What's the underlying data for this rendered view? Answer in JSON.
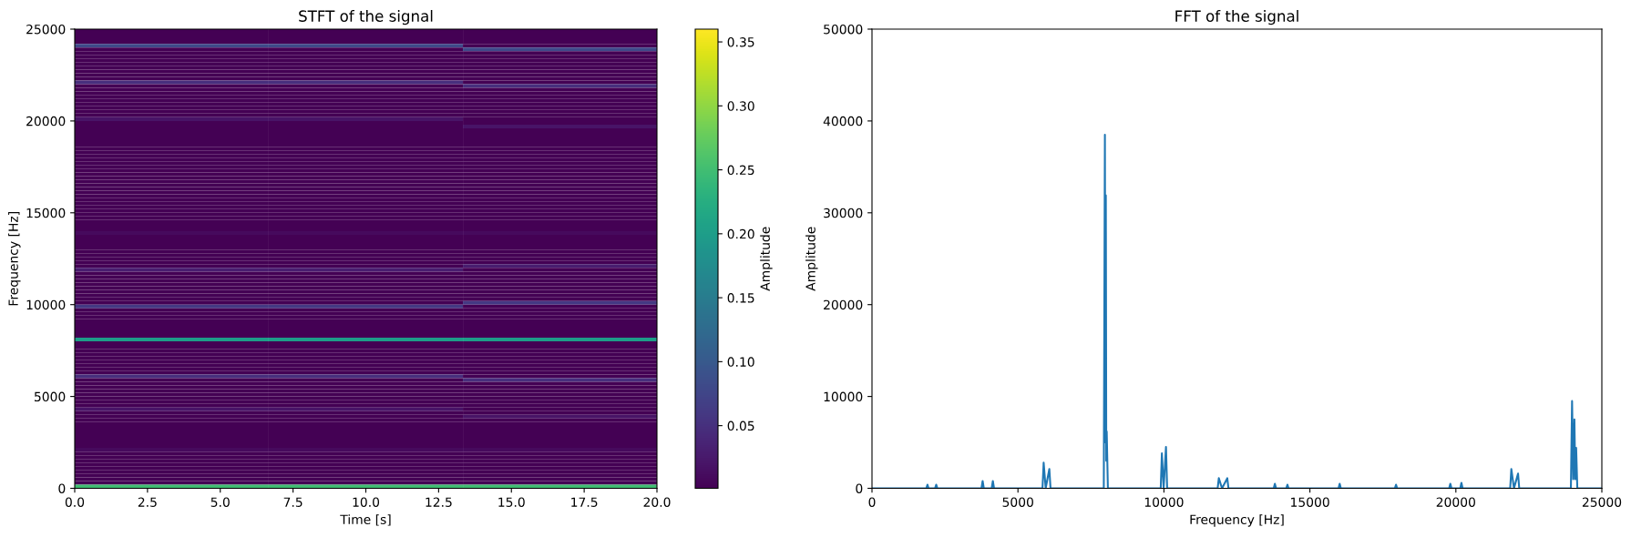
{
  "chart_data": [
    {
      "type": "heatmap",
      "title": "STFT of the signal",
      "xlabel": "Time [s]",
      "ylabel": "Frequency [Hz]",
      "clabel": "Amplitude",
      "x": [
        3.33,
        10,
        16.67
      ],
      "y": [
        24900,
        24700,
        24500,
        24300,
        24100,
        23900,
        23700,
        23500,
        23300,
        23100,
        22900,
        22700,
        22500,
        22300,
        22100,
        21900,
        21700,
        21500,
        21300,
        21100,
        20900,
        20700,
        20500,
        20300,
        20100,
        19900,
        19700,
        19500,
        19300,
        19100,
        18900,
        18700,
        18500,
        18300,
        18100,
        17900,
        17700,
        17500,
        17300,
        17100,
        16900,
        16700,
        16500,
        16300,
        16100,
        15900,
        15700,
        15500,
        15300,
        15100,
        14900,
        14700,
        14500,
        14300,
        14100,
        13900,
        13700,
        13500,
        13300,
        13100,
        12900,
        12700,
        12500,
        12300,
        12100,
        11900,
        11700,
        11500,
        11300,
        11100,
        10900,
        10700,
        10500,
        10300,
        10100,
        9900,
        9700,
        9500,
        9300,
        9100,
        8900,
        8700,
        8500,
        8300,
        8100,
        7900,
        7700,
        7500,
        7300,
        7100,
        6900,
        6700,
        6500,
        6300,
        6100,
        5900,
        5700,
        5500,
        5300,
        5100,
        4900,
        4700,
        4500,
        4300,
        4100,
        3900,
        3700,
        3500,
        3300,
        3100,
        2900,
        2700,
        2500,
        2300,
        2100,
        1900,
        1700,
        1500,
        1300,
        1100,
        900,
        700,
        500,
        300,
        100
      ],
      "cells": [
        [
          0.002,
          0.002,
          0.002
        ],
        [
          0.002,
          0.002,
          0.002
        ],
        [
          0.002,
          0.002,
          0.002
        ],
        [
          0.002,
          0.002,
          0.002
        ],
        [
          0.08,
          0.08,
          0.002
        ],
        [
          0.002,
          0.002,
          0.08
        ],
        [
          0.002,
          0.002,
          0.002
        ],
        [
          0.002,
          0.002,
          0.002
        ],
        [
          0.002,
          0.002,
          0.002
        ],
        [
          0.002,
          0.002,
          0.002
        ],
        [
          0.002,
          0.002,
          0.002
        ],
        [
          0.002,
          0.002,
          0.002
        ],
        [
          0.002,
          0.002,
          0.002
        ],
        [
          0.002,
          0.002,
          0.002
        ],
        [
          0.05,
          0.05,
          0.002
        ],
        [
          0.002,
          0.002,
          0.05
        ],
        [
          0.002,
          0.002,
          0.002
        ],
        [
          0.002,
          0.002,
          0.002
        ],
        [
          0.002,
          0.002,
          0.002
        ],
        [
          0.002,
          0.002,
          0.002
        ],
        [
          0.002,
          0.002,
          0.002
        ],
        [
          0.002,
          0.002,
          0.002
        ],
        [
          0.002,
          0.002,
          0.002
        ],
        [
          0.002,
          0.002,
          0.002
        ],
        [
          0.02,
          0.02,
          0.002
        ],
        [
          0.002,
          0.002,
          0.002
        ],
        [
          0.002,
          0.002,
          0.02
        ],
        [
          0.002,
          0.002,
          0.002
        ],
        [
          0.002,
          0.002,
          0.002
        ],
        [
          0.002,
          0.002,
          0.002
        ],
        [
          0.002,
          0.002,
          0.002
        ],
        [
          0.002,
          0.002,
          0.002
        ],
        [
          0.002,
          0.002,
          0.002
        ],
        [
          0.002,
          0.002,
          0.002
        ],
        [
          0.002,
          0.002,
          0.002
        ],
        [
          0.002,
          0.002,
          0.002
        ],
        [
          0.002,
          0.002,
          0.002
        ],
        [
          0.002,
          0.002,
          0.002
        ],
        [
          0.002,
          0.002,
          0.002
        ],
        [
          0.002,
          0.002,
          0.002
        ],
        [
          0.002,
          0.002,
          0.002
        ],
        [
          0.002,
          0.002,
          0.002
        ],
        [
          0.002,
          0.002,
          0.002
        ],
        [
          0.002,
          0.002,
          0.002
        ],
        [
          0.002,
          0.002,
          0.002
        ],
        [
          0.002,
          0.002,
          0.002
        ],
        [
          0.002,
          0.002,
          0.002
        ],
        [
          0.002,
          0.002,
          0.002
        ],
        [
          0.002,
          0.002,
          0.002
        ],
        [
          0.002,
          0.002,
          0.002
        ],
        [
          0.002,
          0.002,
          0.002
        ],
        [
          0.002,
          0.002,
          0.002
        ],
        [
          0.002,
          0.002,
          0.002
        ],
        [
          0.002,
          0.002,
          0.002
        ],
        [
          0.002,
          0.002,
          0.002
        ],
        [
          0.01,
          0.01,
          0.01
        ],
        [
          0.002,
          0.002,
          0.002
        ],
        [
          0.002,
          0.002,
          0.002
        ],
        [
          0.002,
          0.002,
          0.002
        ],
        [
          0.002,
          0.002,
          0.002
        ],
        [
          0.002,
          0.002,
          0.002
        ],
        [
          0.002,
          0.002,
          0.002
        ],
        [
          0.002,
          0.002,
          0.002
        ],
        [
          0.002,
          0.002,
          0.002
        ],
        [
          0.002,
          0.002,
          0.03
        ],
        [
          0.03,
          0.03,
          0.002
        ],
        [
          0.002,
          0.002,
          0.002
        ],
        [
          0.002,
          0.002,
          0.002
        ],
        [
          0.002,
          0.002,
          0.002
        ],
        [
          0.002,
          0.002,
          0.002
        ],
        [
          0.002,
          0.002,
          0.002
        ],
        [
          0.002,
          0.002,
          0.002
        ],
        [
          0.002,
          0.002,
          0.002
        ],
        [
          0.002,
          0.002,
          0.002
        ],
        [
          0.002,
          0.002,
          0.06
        ],
        [
          0.06,
          0.06,
          0.002
        ],
        [
          0.002,
          0.002,
          0.002
        ],
        [
          0.002,
          0.002,
          0.002
        ],
        [
          0.002,
          0.002,
          0.002
        ],
        [
          0.002,
          0.002,
          0.002
        ],
        [
          0.002,
          0.002,
          0.002
        ],
        [
          0.002,
          0.002,
          0.002
        ],
        [
          0.002,
          0.002,
          0.002
        ],
        [
          0.002,
          0.002,
          0.002
        ],
        [
          0.2,
          0.2,
          0.2
        ],
        [
          0.002,
          0.002,
          0.002
        ],
        [
          0.002,
          0.002,
          0.002
        ],
        [
          0.002,
          0.002,
          0.002
        ],
        [
          0.002,
          0.002,
          0.002
        ],
        [
          0.002,
          0.002,
          0.002
        ],
        [
          0.002,
          0.002,
          0.002
        ],
        [
          0.002,
          0.002,
          0.002
        ],
        [
          0.002,
          0.002,
          0.002
        ],
        [
          0.002,
          0.002,
          0.002
        ],
        [
          0.05,
          0.05,
          0.002
        ],
        [
          0.002,
          0.002,
          0.05
        ],
        [
          0.002,
          0.002,
          0.002
        ],
        [
          0.002,
          0.002,
          0.002
        ],
        [
          0.002,
          0.002,
          0.002
        ],
        [
          0.002,
          0.002,
          0.002
        ],
        [
          0.002,
          0.002,
          0.002
        ],
        [
          0.002,
          0.002,
          0.002
        ],
        [
          0.002,
          0.002,
          0.002
        ],
        [
          0.02,
          0.02,
          0.002
        ],
        [
          0.002,
          0.002,
          0.002
        ],
        [
          0.002,
          0.002,
          0.02
        ],
        [
          0.002,
          0.002,
          0.002
        ],
        [
          0.002,
          0.002,
          0.002
        ],
        [
          0.002,
          0.002,
          0.002
        ],
        [
          0.002,
          0.002,
          0.002
        ],
        [
          0.002,
          0.002,
          0.002
        ],
        [
          0.002,
          0.002,
          0.002
        ],
        [
          0.002,
          0.002,
          0.002
        ],
        [
          0.002,
          0.002,
          0.002
        ],
        [
          0.01,
          0.01,
          0.01
        ],
        [
          0.002,
          0.002,
          0.002
        ],
        [
          0.002,
          0.002,
          0.002
        ],
        [
          0.002,
          0.002,
          0.002
        ],
        [
          0.002,
          0.002,
          0.002
        ],
        [
          0.002,
          0.002,
          0.002
        ],
        [
          0.002,
          0.002,
          0.002
        ],
        [
          0.002,
          0.002,
          0.002
        ],
        [
          0.002,
          0.002,
          0.002
        ],
        [
          0.002,
          0.002,
          0.002
        ],
        [
          0.25,
          0.25,
          0.25
        ]
      ],
      "clim": [
        0.001,
        0.36
      ],
      "cticks": [
        {
          "value": 0.05,
          "label": "0.05"
        },
        {
          "value": 0.1,
          "label": "0.10"
        },
        {
          "value": 0.15,
          "label": "0.15"
        },
        {
          "value": 0.2,
          "label": "0.20"
        },
        {
          "value": 0.25,
          "label": "0.25"
        },
        {
          "value": 0.3,
          "label": "0.30"
        },
        {
          "value": 0.35,
          "label": "0.35"
        }
      ],
      "xlim": [
        0,
        20
      ],
      "ylim": [
        0,
        25000
      ],
      "xticks": [
        {
          "value": 0,
          "label": "0.0"
        },
        {
          "value": 2.5,
          "label": "2.5"
        },
        {
          "value": 5,
          "label": "5.0"
        },
        {
          "value": 7.5,
          "label": "7.5"
        },
        {
          "value": 10,
          "label": "10.0"
        },
        {
          "value": 12.5,
          "label": "12.5"
        },
        {
          "value": 15,
          "label": "15.0"
        },
        {
          "value": 17.5,
          "label": "17.5"
        },
        {
          "value": 20,
          "label": "20.0"
        }
      ],
      "yticks": [
        0,
        5000,
        10000,
        15000,
        20000,
        25000
      ]
    },
    {
      "type": "line",
      "title": "FFT of the signal",
      "xlabel": "Frequency [Hz]",
      "ylabel": "Amplitude",
      "x": [
        0,
        1860,
        1900,
        1940,
        2160,
        2200,
        2240,
        3750,
        3790,
        3830,
        4100,
        4140,
        4180,
        5840,
        5880,
        5950,
        6075,
        6115,
        7940,
        7978,
        7995,
        8010,
        8025,
        8040,
        8080,
        9890,
        9930,
        9990,
        10070,
        10110,
        11840,
        11880,
        11990,
        12170,
        12210,
        13760,
        13800,
        13840,
        14190,
        14230,
        14270,
        15980,
        16020,
        16060,
        17910,
        17950,
        17990,
        19770,
        19810,
        19850,
        20150,
        20190,
        20230,
        21860,
        21900,
        21990,
        22130,
        22170,
        23940,
        23980,
        24020,
        24060,
        24090,
        24120,
        24160,
        25000
      ],
      "series": [
        {
          "color": "#1f77b4",
          "values": [
            0,
            0,
            400,
            0,
            0,
            400,
            0,
            0,
            800,
            0,
            0,
            800,
            0,
            0,
            2800,
            0,
            2100,
            0,
            0,
            38500,
            5000,
            31900,
            3000,
            6200,
            0,
            0,
            3800,
            0,
            4500,
            0,
            0,
            1100,
            0,
            1100,
            0,
            0,
            500,
            0,
            0,
            400,
            0,
            0,
            500,
            0,
            0,
            400,
            0,
            0,
            500,
            0,
            0,
            600,
            0,
            0,
            2100,
            0,
            1600,
            0,
            0,
            9500,
            1000,
            7500,
            1000,
            4400,
            0,
            0
          ]
        }
      ],
      "xlim": [
        0,
        25000
      ],
      "ylim": [
        0,
        50000
      ],
      "xticks": [
        0,
        5000,
        10000,
        15000,
        20000,
        25000
      ],
      "yticks": [
        0,
        10000,
        20000,
        30000,
        40000,
        50000
      ]
    }
  ]
}
